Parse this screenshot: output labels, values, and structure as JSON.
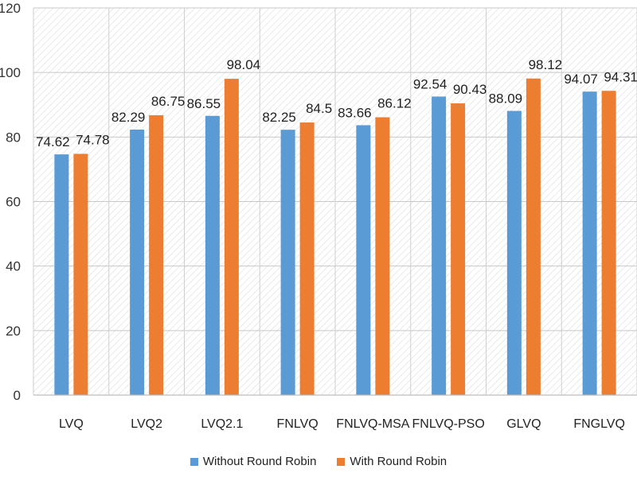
{
  "chart_data": {
    "type": "bar",
    "title": "",
    "xlabel": "",
    "ylabel": "",
    "ylim": [
      0,
      120
    ],
    "yticks": [
      0,
      20,
      40,
      60,
      80,
      100,
      120
    ],
    "grid": true,
    "legend_position": "bottom",
    "categories": [
      "LVQ",
      "LVQ2",
      "LVQ2.1",
      "FNLVQ",
      "FNLVQ-MSA",
      "FNLVQ-PSO",
      "GLVQ",
      "FNGLVQ"
    ],
    "series": [
      {
        "name": "Without Round Robin",
        "color": "#5b9bd5",
        "values": [
          74.62,
          82.29,
          86.55,
          82.25,
          83.66,
          92.54,
          88.09,
          94.07
        ],
        "labels": [
          "74.62",
          "82.29",
          "86.55",
          "82.25",
          "83.66",
          "92.54",
          "88.09",
          "94.07"
        ]
      },
      {
        "name": "With Round Robin",
        "color": "#ed7d31",
        "values": [
          74.78,
          86.75,
          98.04,
          84.5,
          86.12,
          90.43,
          98.12,
          94.31
        ],
        "labels": [
          "74.78",
          "86.75",
          "98.04",
          "84.5",
          "86.12",
          "90.43",
          "98.12",
          "94.31"
        ]
      }
    ]
  }
}
